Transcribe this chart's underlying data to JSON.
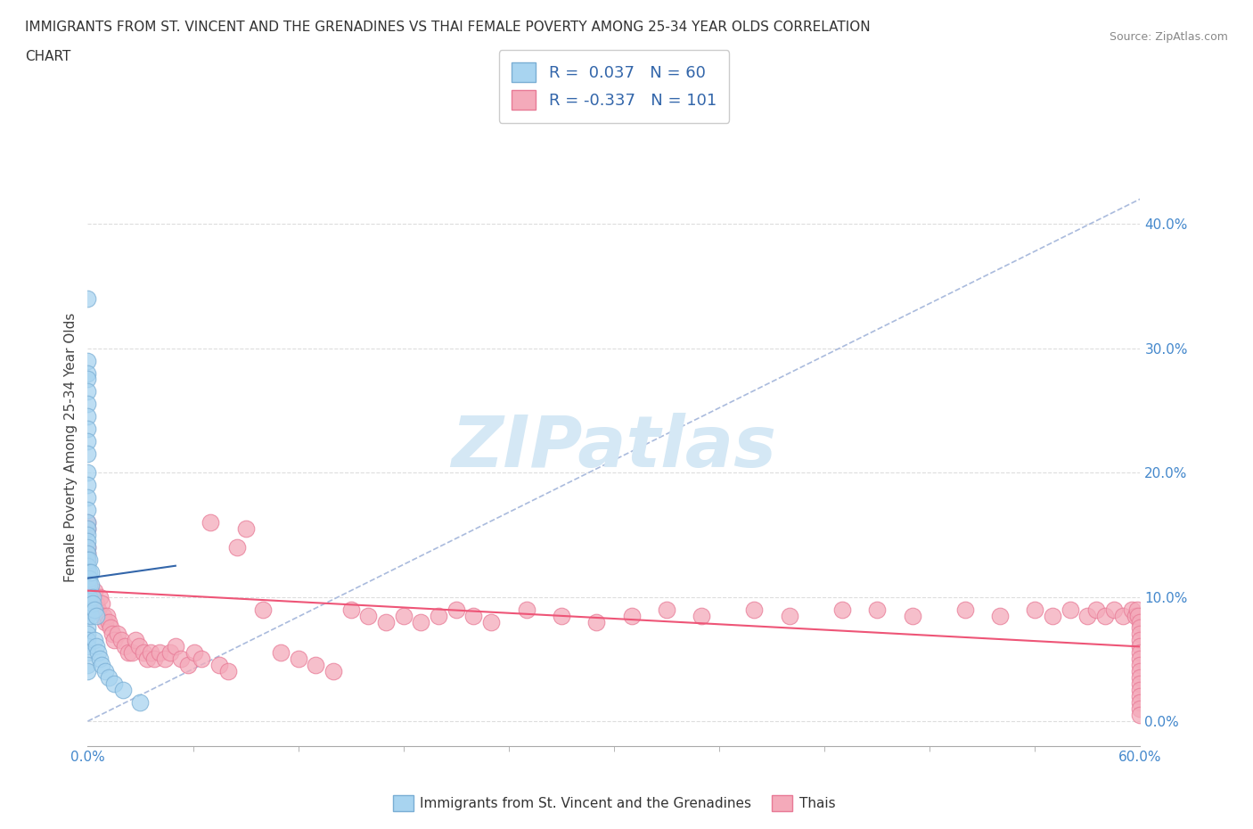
{
  "title_line1": "IMMIGRANTS FROM ST. VINCENT AND THE GRENADINES VS THAI FEMALE POVERTY AMONG 25-34 YEAR OLDS CORRELATION",
  "title_line2": "CHART",
  "source": "Source: ZipAtlas.com",
  "ylabel": "Female Poverty Among 25-34 Year Olds",
  "xlim": [
    0.0,
    0.6
  ],
  "ylim": [
    -0.02,
    0.46
  ],
  "yticks": [
    0.0,
    0.1,
    0.2,
    0.3,
    0.4
  ],
  "ytick_labels": [
    "0.0%",
    "10.0%",
    "20.0%",
    "30.0%",
    "40.0%"
  ],
  "xtick_ends": [
    0.0,
    0.6
  ],
  "xtick_end_labels": [
    "0.0%",
    "60.0%"
  ],
  "blue_R": 0.037,
  "blue_N": 60,
  "pink_R": -0.337,
  "pink_N": 101,
  "blue_color": "#A8D4F0",
  "pink_color": "#F4AABA",
  "blue_edge": "#7AAED4",
  "pink_edge": "#E87A96",
  "trend_blue_color": "#3366AA",
  "trend_pink_color": "#EE5577",
  "ref_line_color": "#AABBDD",
  "watermark_color": "#D5E8F5",
  "grid_color": "#DDDDDD",
  "legend_label_blue": "Immigrants from St. Vincent and the Grenadines",
  "legend_label_pink": "Thais",
  "blue_x": [
    0.0,
    0.0,
    0.0,
    0.0,
    0.0,
    0.0,
    0.0,
    0.0,
    0.0,
    0.0,
    0.0,
    0.0,
    0.0,
    0.0,
    0.0,
    0.0,
    0.0,
    0.0,
    0.0,
    0.0,
    0.0,
    0.0,
    0.0,
    0.0,
    0.0,
    0.0,
    0.0,
    0.0,
    0.0,
    0.0,
    0.0,
    0.0,
    0.0,
    0.0,
    0.0,
    0.0,
    0.0,
    0.001,
    0.001,
    0.001,
    0.001,
    0.001,
    0.001,
    0.002,
    0.002,
    0.002,
    0.003,
    0.003,
    0.004,
    0.004,
    0.005,
    0.005,
    0.006,
    0.007,
    0.008,
    0.01,
    0.012,
    0.015,
    0.02,
    0.03
  ],
  "blue_y": [
    0.34,
    0.29,
    0.28,
    0.275,
    0.265,
    0.255,
    0.245,
    0.235,
    0.225,
    0.215,
    0.2,
    0.19,
    0.18,
    0.17,
    0.16,
    0.155,
    0.15,
    0.145,
    0.14,
    0.135,
    0.13,
    0.125,
    0.12,
    0.115,
    0.11,
    0.105,
    0.1,
    0.095,
    0.09,
    0.085,
    0.075,
    0.07,
    0.065,
    0.06,
    0.055,
    0.045,
    0.04,
    0.13,
    0.12,
    0.115,
    0.11,
    0.1,
    0.09,
    0.12,
    0.11,
    0.085,
    0.1,
    0.095,
    0.09,
    0.065,
    0.085,
    0.06,
    0.055,
    0.05,
    0.045,
    0.04,
    0.035,
    0.03,
    0.025,
    0.015
  ],
  "pink_x": [
    0.0,
    0.0,
    0.0,
    0.0,
    0.0,
    0.0,
    0.0,
    0.001,
    0.002,
    0.003,
    0.004,
    0.005,
    0.006,
    0.007,
    0.008,
    0.009,
    0.01,
    0.011,
    0.012,
    0.013,
    0.014,
    0.015,
    0.017,
    0.019,
    0.021,
    0.023,
    0.025,
    0.027,
    0.029,
    0.032,
    0.034,
    0.036,
    0.038,
    0.041,
    0.044,
    0.047,
    0.05,
    0.053,
    0.057,
    0.061,
    0.065,
    0.07,
    0.075,
    0.08,
    0.085,
    0.09,
    0.1,
    0.11,
    0.12,
    0.13,
    0.14,
    0.15,
    0.16,
    0.17,
    0.18,
    0.19,
    0.2,
    0.21,
    0.22,
    0.23,
    0.25,
    0.27,
    0.29,
    0.31,
    0.33,
    0.35,
    0.38,
    0.4,
    0.43,
    0.45,
    0.47,
    0.5,
    0.52,
    0.54,
    0.55,
    0.56,
    0.57,
    0.575,
    0.58,
    0.585,
    0.59,
    0.595,
    0.597,
    0.598,
    0.599,
    0.6,
    0.6,
    0.6,
    0.6,
    0.6,
    0.6,
    0.6,
    0.6,
    0.6,
    0.6,
    0.6,
    0.6,
    0.6,
    0.6,
    0.6,
    0.6
  ],
  "pink_y": [
    0.16,
    0.155,
    0.14,
    0.135,
    0.13,
    0.12,
    0.115,
    0.11,
    0.105,
    0.1,
    0.105,
    0.095,
    0.09,
    0.1,
    0.095,
    0.085,
    0.08,
    0.085,
    0.08,
    0.075,
    0.07,
    0.065,
    0.07,
    0.065,
    0.06,
    0.055,
    0.055,
    0.065,
    0.06,
    0.055,
    0.05,
    0.055,
    0.05,
    0.055,
    0.05,
    0.055,
    0.06,
    0.05,
    0.045,
    0.055,
    0.05,
    0.16,
    0.045,
    0.04,
    0.14,
    0.155,
    0.09,
    0.055,
    0.05,
    0.045,
    0.04,
    0.09,
    0.085,
    0.08,
    0.085,
    0.08,
    0.085,
    0.09,
    0.085,
    0.08,
    0.09,
    0.085,
    0.08,
    0.085,
    0.09,
    0.085,
    0.09,
    0.085,
    0.09,
    0.09,
    0.085,
    0.09,
    0.085,
    0.09,
    0.085,
    0.09,
    0.085,
    0.09,
    0.085,
    0.09,
    0.085,
    0.09,
    0.085,
    0.09,
    0.085,
    0.08,
    0.075,
    0.07,
    0.065,
    0.06,
    0.055,
    0.05,
    0.045,
    0.04,
    0.035,
    0.03,
    0.025,
    0.02,
    0.015,
    0.01,
    0.005
  ],
  "blue_trend_x0": 0.0,
  "blue_trend_x1": 0.05,
  "blue_trend_y0": 0.115,
  "blue_trend_y1": 0.125,
  "pink_trend_x0": 0.0,
  "pink_trend_x1": 0.6,
  "pink_trend_y0": 0.105,
  "pink_trend_y1": 0.06
}
